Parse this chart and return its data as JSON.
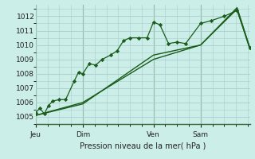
{
  "xlabel": "Pression niveau de la mer( hPa )",
  "bg_color": "#cceee8",
  "grid_color": "#aacccc",
  "line_color": "#1a5c1a",
  "ylim": [
    1004.5,
    1012.8
  ],
  "yticks": [
    1005,
    1006,
    1007,
    1008,
    1009,
    1010,
    1011,
    1012
  ],
  "xtick_positions": [
    0,
    0.22,
    0.55,
    0.77
  ],
  "xticklabels": [
    "Jeu",
    "Dim",
    "Ven",
    "Sam"
  ],
  "series1_x": [
    0.0,
    0.02,
    0.04,
    0.06,
    0.08,
    0.11,
    0.14,
    0.18,
    0.2,
    0.22,
    0.25,
    0.28,
    0.31,
    0.35,
    0.38,
    0.41,
    0.44,
    0.48,
    0.52,
    0.55,
    0.58,
    0.62,
    0.66,
    0.7,
    0.77,
    0.82,
    0.88,
    0.94,
    1.0
  ],
  "series1_y": [
    1005.3,
    1005.6,
    1005.2,
    1005.8,
    1006.1,
    1006.2,
    1006.2,
    1007.5,
    1008.1,
    1008.0,
    1008.7,
    1008.6,
    1009.0,
    1009.3,
    1009.6,
    1010.3,
    1010.5,
    1010.5,
    1010.5,
    1011.6,
    1011.4,
    1010.1,
    1010.2,
    1010.1,
    1011.5,
    1011.7,
    1012.0,
    1012.4,
    1009.8
  ],
  "series2_x": [
    0.0,
    0.22,
    0.55,
    0.77,
    0.94,
    1.0
  ],
  "series2_y": [
    1005.1,
    1005.9,
    1009.3,
    1010.0,
    1012.5,
    1009.7
  ],
  "series3_x": [
    0.0,
    0.22,
    0.55,
    0.77,
    0.94,
    1.0
  ],
  "series3_y": [
    1005.1,
    1006.0,
    1009.0,
    1010.0,
    1012.6,
    1009.8
  ],
  "figsize": [
    3.2,
    2.0
  ],
  "dpi": 100
}
